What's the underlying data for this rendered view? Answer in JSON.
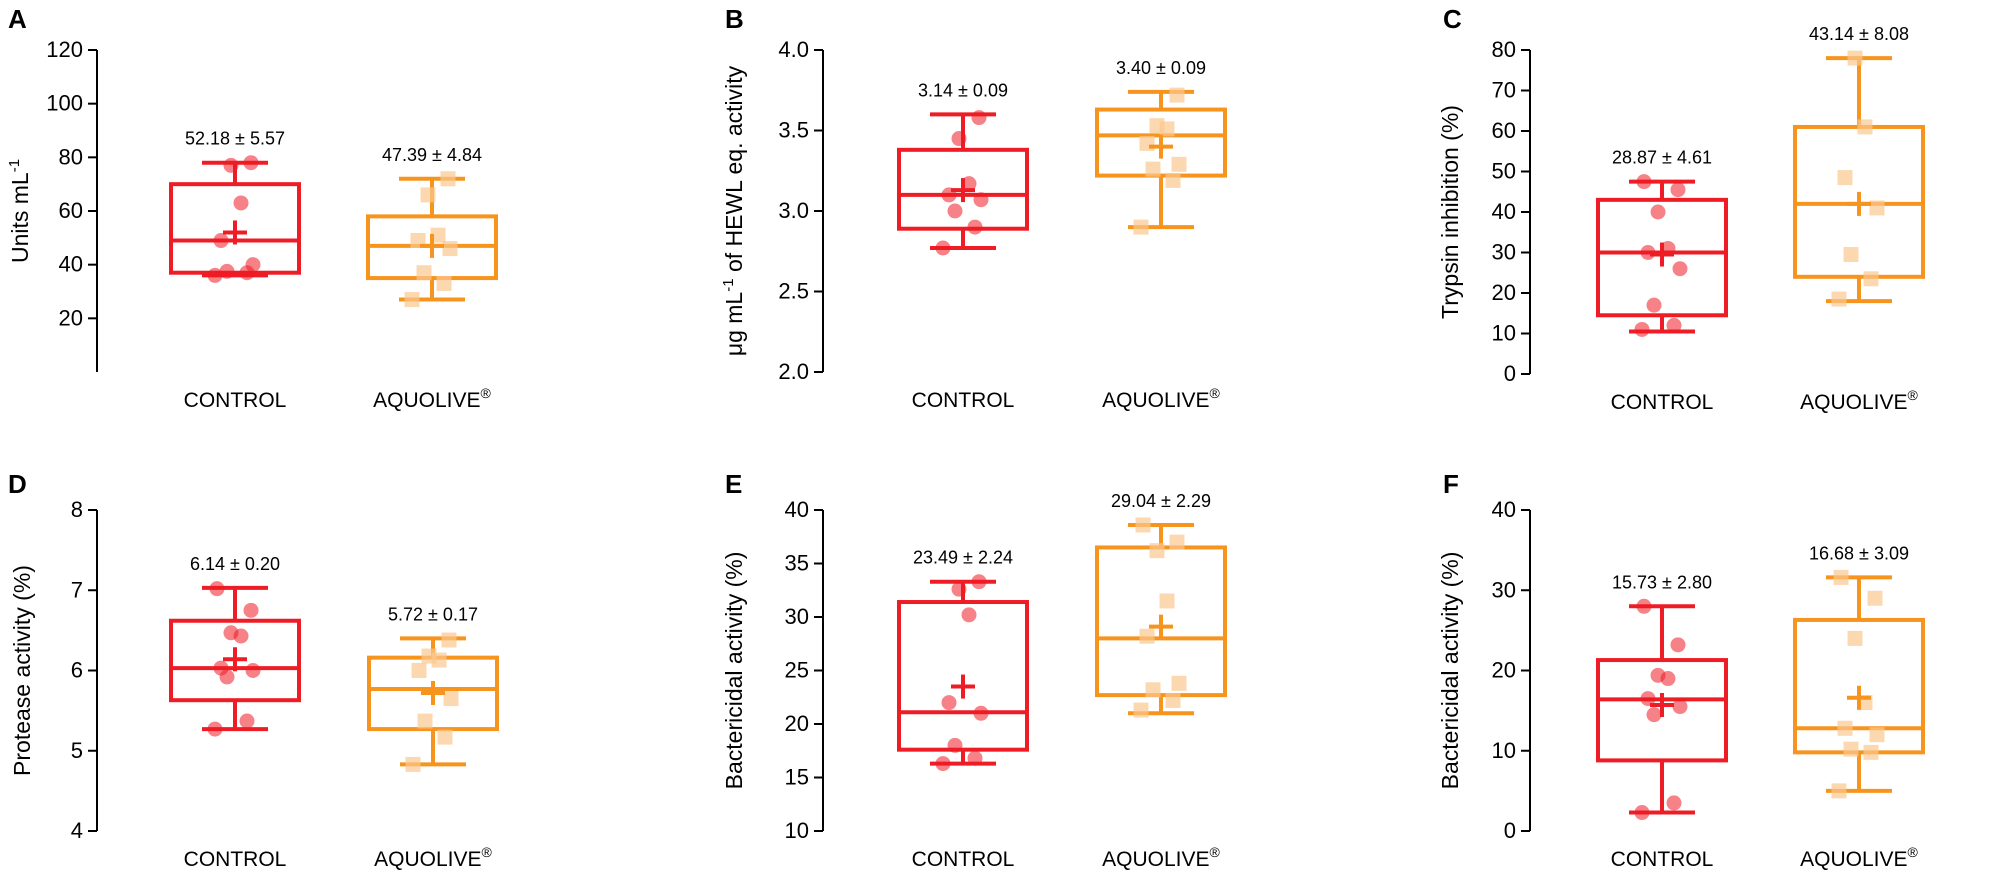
{
  "chart_data": [
    {
      "type": "box",
      "panel": "A",
      "ylabel": "Units mL",
      "ylabel_sup": "-1",
      "ylim": [
        0,
        120
      ],
      "ticks": [
        "20",
        "40",
        "60",
        "80",
        "100",
        "120"
      ],
      "categories": [
        {
          "label": "CONTROL",
          "sup": "",
          "color": "#ee1c25",
          "whisker_low": 36,
          "q1": 37,
          "median": 49,
          "q3": 70,
          "whisker_high": 78,
          "mean": 52,
          "points": [
            36,
            37,
            37.5,
            40,
            49,
            63,
            77,
            78
          ],
          "annotation": "52.18 ± 5.57"
        },
        {
          "label": "AQUOLIVE",
          "sup": "®",
          "color": "#f7941d",
          "whisker_low": 27,
          "q1": 35,
          "median": 47,
          "q3": 58,
          "whisker_high": 72,
          "mean": 47,
          "points": [
            27,
            33,
            37,
            46,
            49,
            51,
            66,
            72
          ],
          "annotation": "47.39 ± 4.84"
        }
      ]
    },
    {
      "type": "box",
      "panel": "B",
      "ylabel": "μg mL",
      "ylabel_sup": "-1",
      "ylabel_suffix": " of HEWL eq. activity",
      "ylim": [
        2.0,
        4.0
      ],
      "ticks": [
        "2.0",
        "2.5",
        "3.0",
        "3.5",
        "4.0"
      ],
      "categories": [
        {
          "label": "CONTROL",
          "sup": "",
          "color": "#ee1c25",
          "whisker_low": 2.77,
          "q1": 2.89,
          "median": 3.1,
          "q3": 3.38,
          "whisker_high": 3.6,
          "mean": 3.13,
          "points": [
            2.77,
            2.9,
            3.0,
            3.07,
            3.1,
            3.17,
            3.45,
            3.58
          ],
          "annotation": "3.14 ± 0.09"
        },
        {
          "label": "AQUOLIVE",
          "sup": "®",
          "color": "#f7941d",
          "whisker_low": 2.9,
          "q1": 3.22,
          "median": 3.47,
          "q3": 3.63,
          "whisker_high": 3.74,
          "mean": 3.4,
          "points": [
            2.9,
            3.19,
            3.26,
            3.29,
            3.42,
            3.51,
            3.53,
            3.72
          ],
          "annotation": "3.40 ± 0.09"
        }
      ]
    },
    {
      "type": "box",
      "panel": "C",
      "ylabel": "Trypsin inhibition (%)",
      "ylabel_sup": "",
      "ylim": [
        0,
        80
      ],
      "ticks": [
        "0",
        "10",
        "20",
        "30",
        "40",
        "50",
        "60",
        "70",
        "80"
      ],
      "categories": [
        {
          "label": "CONTROL",
          "sup": "",
          "color": "#ee1c25",
          "whisker_low": 10.5,
          "q1": 14.5,
          "median": 30,
          "q3": 43,
          "whisker_high": 47.5,
          "mean": 29.5,
          "points": [
            11,
            12,
            17,
            26,
            30,
            31,
            40,
            45.5,
            47.5
          ],
          "annotation": "28.87 ± 4.61"
        },
        {
          "label": "AQUOLIVE",
          "sup": "®",
          "color": "#f7941d",
          "whisker_low": 18,
          "q1": 24,
          "median": 42,
          "q3": 61,
          "whisker_high": 78,
          "mean": 42,
          "points": [
            18.5,
            23.5,
            29.5,
            41,
            48.5,
            61,
            78
          ],
          "annotation": "43.14 ± 8.08"
        }
      ]
    },
    {
      "type": "box",
      "panel": "D",
      "ylabel": "Protease activity (%)",
      "ylabel_sup": "",
      "ylim": [
        4,
        8
      ],
      "ticks": [
        "4",
        "5",
        "6",
        "7",
        "8"
      ],
      "categories": [
        {
          "label": "CONTROL",
          "sup": "",
          "color": "#ee1c25",
          "whisker_low": 5.27,
          "q1": 5.63,
          "median": 6.03,
          "q3": 6.62,
          "whisker_high": 7.03,
          "mean": 6.14,
          "points": [
            5.27,
            5.37,
            5.92,
            6.0,
            6.03,
            6.43,
            6.47,
            6.75,
            7.02
          ],
          "annotation": "6.14 ± 0.20"
        },
        {
          "label": "AQUOLIVE",
          "sup": "®",
          "color": "#f7941d",
          "whisker_low": 4.83,
          "q1": 5.27,
          "median": 5.77,
          "q3": 6.16,
          "whisker_high": 6.4,
          "mean": 5.72,
          "points": [
            4.83,
            5.17,
            5.37,
            5.65,
            6.0,
            6.13,
            6.18,
            6.38
          ],
          "annotation": "5.72 ± 0.17"
        }
      ]
    },
    {
      "type": "box",
      "panel": "E",
      "ylabel": "Bactericidal activity (%)",
      "ylabel_sup": "",
      "ylim": [
        10,
        40
      ],
      "ticks": [
        "10",
        "15",
        "20",
        "25",
        "30",
        "35",
        "40"
      ],
      "categories": [
        {
          "label": "CONTROL",
          "sup": "",
          "color": "#ee1c25",
          "whisker_low": 16.3,
          "q1": 17.6,
          "median": 21.1,
          "q3": 31.4,
          "whisker_high": 33.3,
          "mean": 23.5,
          "points": [
            16.3,
            16.8,
            18.0,
            21.0,
            22.0,
            30.2,
            32.6,
            33.3
          ],
          "annotation": "23.49 ± 2.24"
        },
        {
          "label": "AQUOLIVE",
          "sup": "®",
          "color": "#f7941d",
          "whisker_low": 21.0,
          "q1": 22.7,
          "median": 28.0,
          "q3": 36.5,
          "whisker_high": 38.6,
          "mean": 29.1,
          "points": [
            21.3,
            22.2,
            23.2,
            23.8,
            28.2,
            31.5,
            36.2,
            37.0,
            38.6
          ],
          "annotation": "29.04 ± 2.29"
        }
      ]
    },
    {
      "type": "box",
      "panel": "F",
      "ylabel": "Bactericidal activity (%)",
      "ylabel_sup": "",
      "ylim": [
        0,
        40
      ],
      "ticks": [
        "0",
        "10",
        "20",
        "30",
        "40"
      ],
      "categories": [
        {
          "label": "CONTROL",
          "sup": "",
          "color": "#ee1c25",
          "whisker_low": 2.3,
          "q1": 8.8,
          "median": 16.4,
          "q3": 21.3,
          "whisker_high": 28.0,
          "mean": 15.7,
          "points": [
            2.3,
            3.5,
            14.5,
            15.5,
            16.5,
            19.0,
            19.4,
            23.2,
            28.0
          ],
          "annotation": "15.73 ± 2.80"
        },
        {
          "label": "AQUOLIVE",
          "sup": "®",
          "color": "#f7941d",
          "whisker_low": 5.0,
          "q1": 9.8,
          "median": 12.8,
          "q3": 26.3,
          "whisker_high": 31.6,
          "mean": 16.6,
          "points": [
            5.0,
            9.8,
            10.2,
            12.0,
            12.8,
            16.0,
            24.0,
            29.0,
            31.6
          ],
          "annotation": "16.68 ± 3.09"
        }
      ]
    }
  ]
}
